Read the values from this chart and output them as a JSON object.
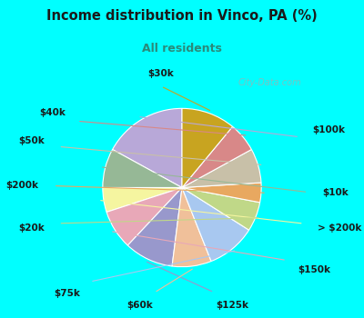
{
  "title": "Income distribution in Vinco, PA (%)",
  "subtitle": "All residents",
  "watermark": "© City-Data.com",
  "labels": [
    "$100k",
    "$10k",
    "> $200k",
    "$150k",
    "$125k",
    "$60k",
    "$75k",
    "$20k",
    "$200k",
    "$50k",
    "$40k",
    "$30k"
  ],
  "sizes": [
    17,
    8,
    5,
    8,
    10,
    8,
    10,
    6,
    4,
    7,
    6,
    11
  ],
  "colors": [
    "#b8a8d8",
    "#96b896",
    "#f5f5a0",
    "#e8a8b8",
    "#9898cc",
    "#f0c09a",
    "#a8c8f0",
    "#c0d888",
    "#e8a860",
    "#c8c0a8",
    "#d88888",
    "#c8a420"
  ],
  "header_bg": "#00ffff",
  "chart_bg_outer": "#00ffff",
  "chart_bg_inner": "#e8f8f0",
  "title_color": "#1a1a1a",
  "subtitle_color": "#2a8a7a",
  "startangle": 90
}
